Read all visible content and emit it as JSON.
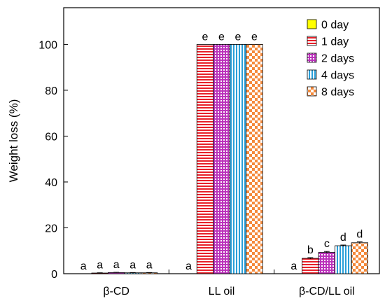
{
  "chart_data": {
    "type": "bar",
    "ylabel": "Weight loss (%)",
    "xlabel": "",
    "ylim": [
      0,
      116
    ],
    "yticks": [
      0,
      20,
      40,
      60,
      80,
      100
    ],
    "categories": [
      "β-CD",
      "LL oil",
      "β-CD/LL oil"
    ],
    "series": [
      {
        "name": "0 day",
        "values": [
          0,
          0,
          0
        ],
        "letters": [
          "a",
          "a",
          "a"
        ],
        "color": "#ffff00",
        "pattern": "solid"
      },
      {
        "name": "1 day",
        "values": [
          0.3,
          100,
          6.7
        ],
        "letters": [
          "a",
          "e",
          "b"
        ],
        "color": "#ff0000",
        "pattern": "hlines"
      },
      {
        "name": "2 days",
        "values": [
          0.5,
          100,
          9.3
        ],
        "letters": [
          "a",
          "e",
          "c"
        ],
        "color": "#cc33cc",
        "pattern": "grid"
      },
      {
        "name": "4 days",
        "values": [
          0.4,
          100,
          12.2
        ],
        "letters": [
          "a",
          "e",
          "d"
        ],
        "color": "#33aadd",
        "pattern": "vlines"
      },
      {
        "name": "8 days",
        "values": [
          0.4,
          100,
          13.5
        ],
        "letters": [
          "a",
          "e",
          "d"
        ],
        "color": "#ff8833",
        "pattern": "checker"
      }
    ],
    "error_bars": [
      [
        0,
        0,
        0
      ],
      [
        0.1,
        0,
        0.3
      ],
      [
        0.1,
        0,
        0.4
      ],
      [
        0.1,
        0,
        0.3
      ],
      [
        0.1,
        0,
        0.4
      ]
    ],
    "legend_position": "top-right",
    "grid": false
  }
}
